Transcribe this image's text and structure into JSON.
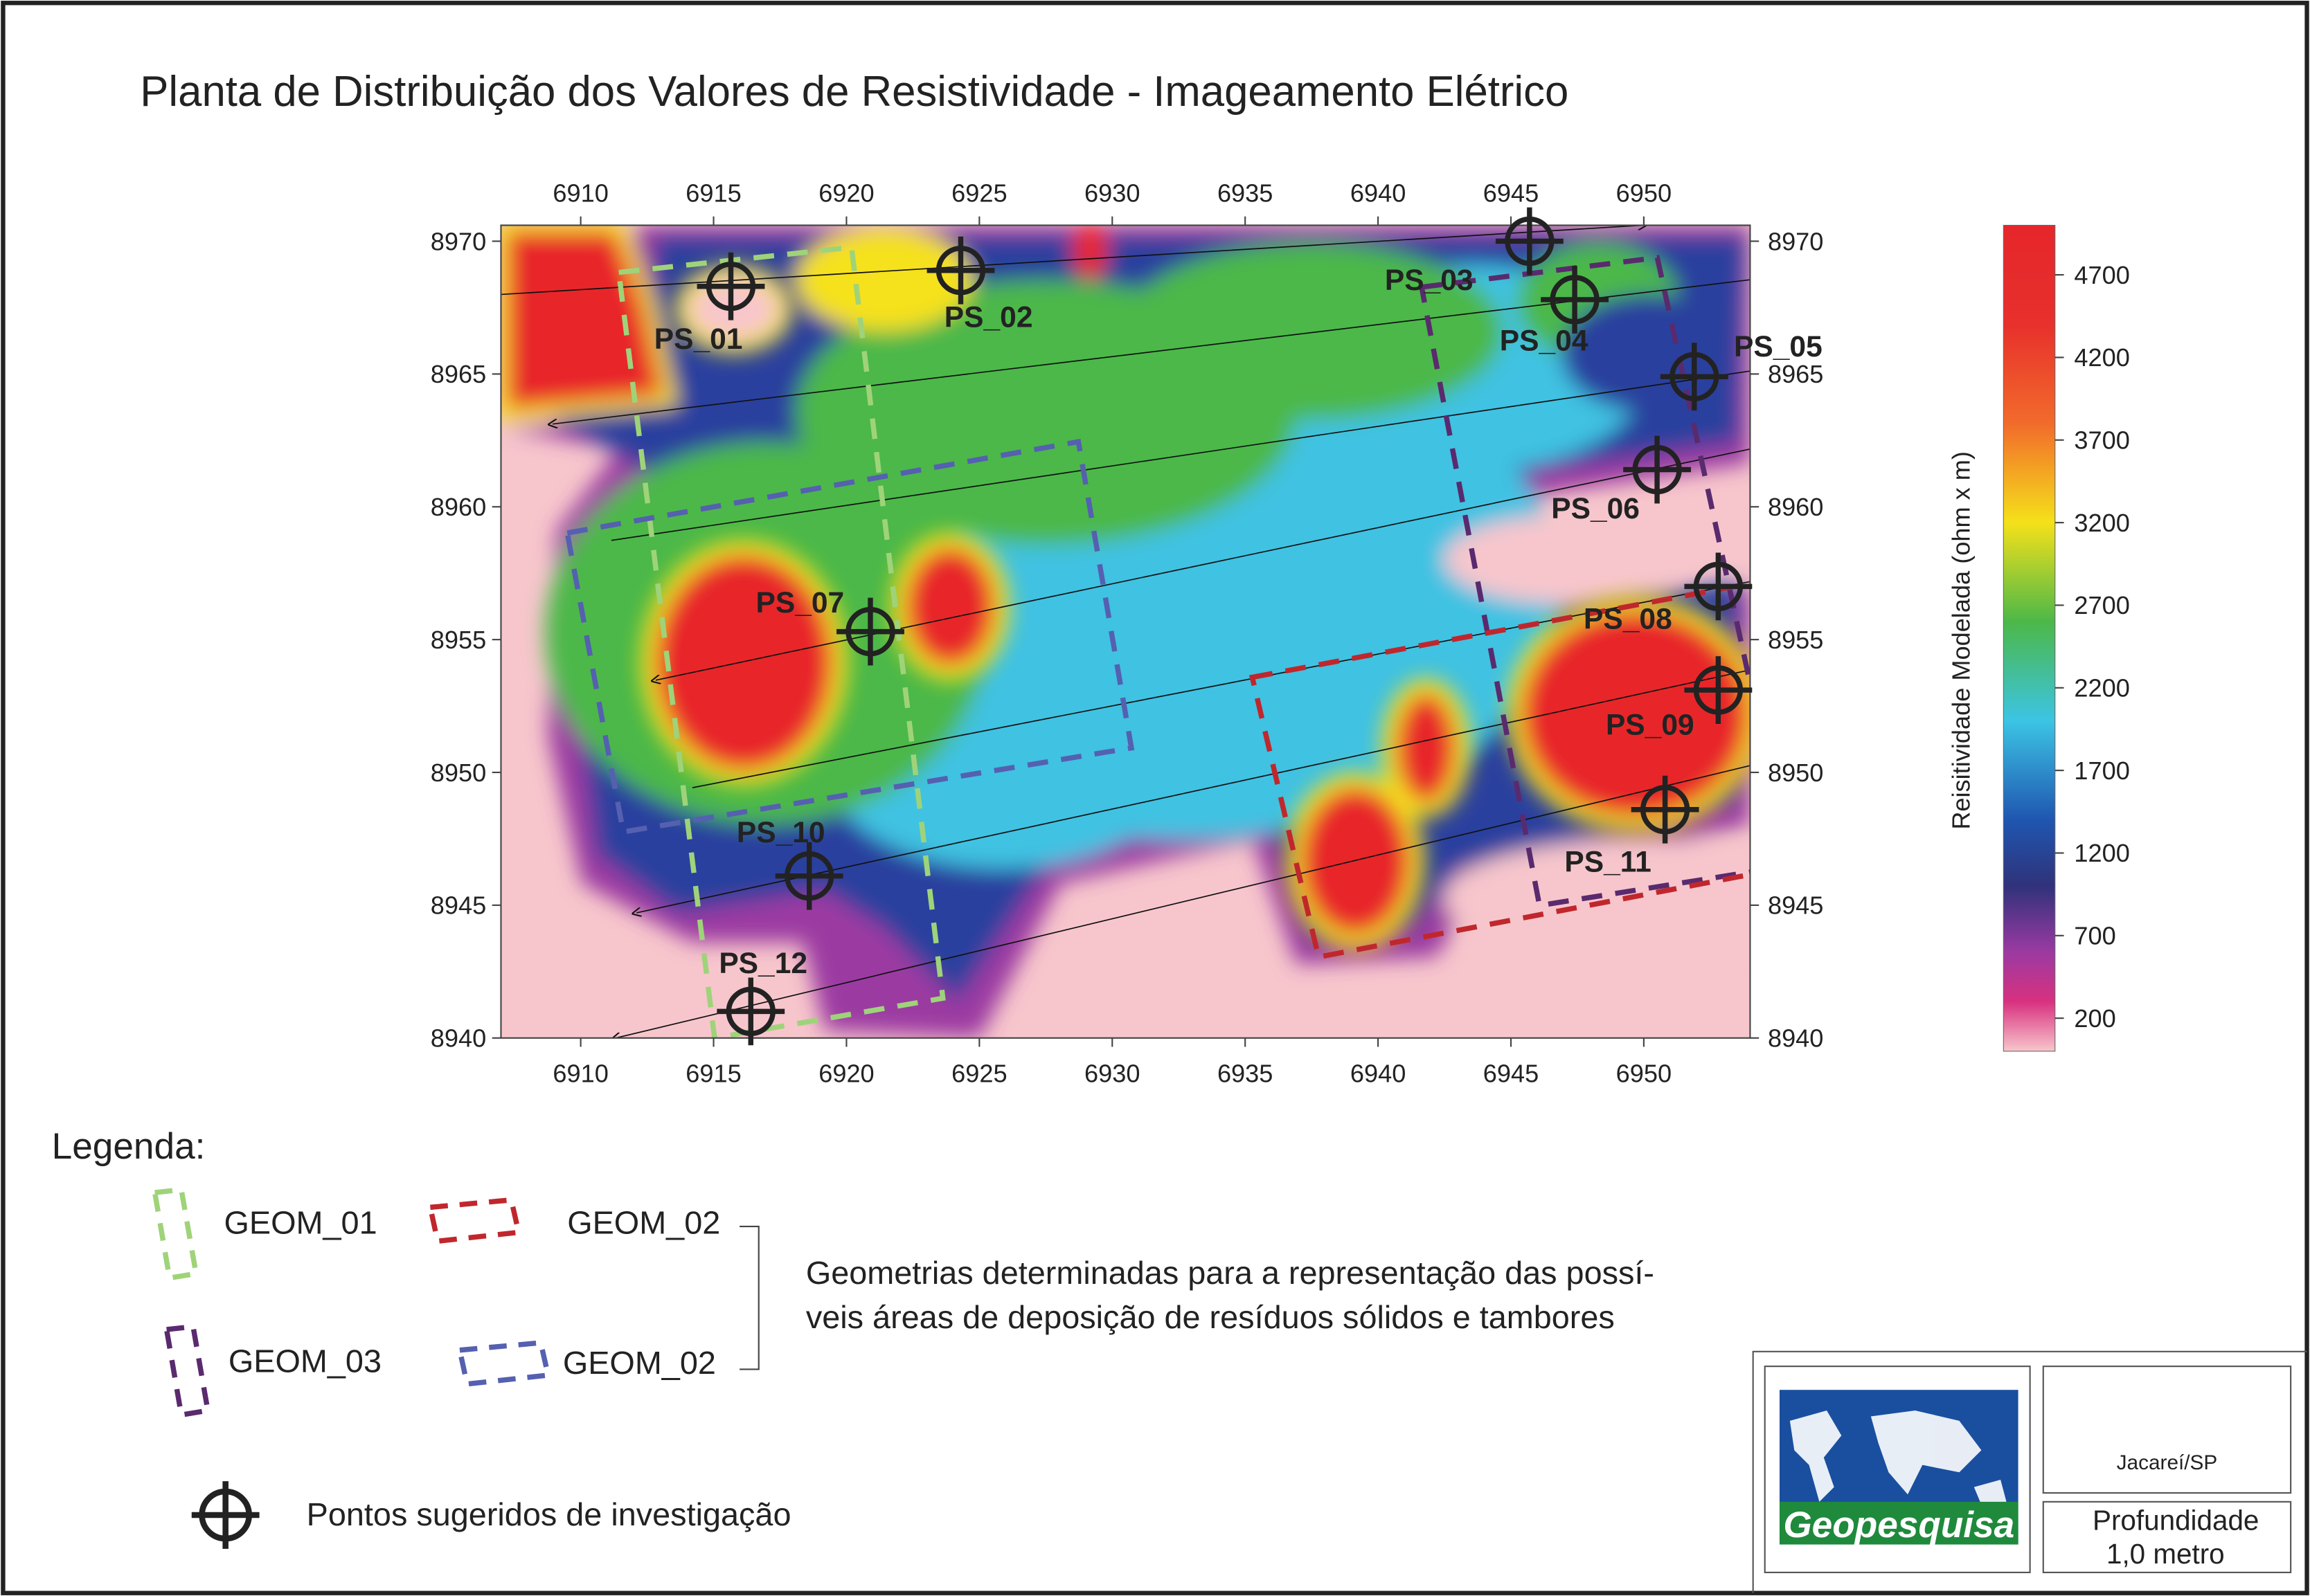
{
  "title": "Planta de Distribuição dos Valores de Resistividade  - Imageamento Elétrico",
  "map": {
    "xlim": [
      6907,
      6954
    ],
    "ylim": [
      8940,
      8970.6
    ],
    "xticks": [
      6910,
      6915,
      6920,
      6925,
      6930,
      6935,
      6940,
      6945,
      6950
    ],
    "yticks": [
      8970,
      8965,
      8960,
      8955,
      8950,
      8945,
      8940
    ],
    "points": [
      {
        "label": "PS_01",
        "x": 6915.65,
        "y": 8968.3
      },
      {
        "label": "PS_02",
        "x": 6924.3,
        "y": 8968.9
      },
      {
        "label": "PS_03",
        "x": 6945.7,
        "y": 8970.0
      },
      {
        "label": "PS_04",
        "x": 6947.4,
        "y": 8967.8
      },
      {
        "label": "PS_05",
        "x": 6951.9,
        "y": 8964.9
      },
      {
        "label": "PS_06",
        "x": 6950.5,
        "y": 8961.4
      },
      {
        "label": "PS_07",
        "x": 6920.9,
        "y": 8955.3
      },
      {
        "label": "PS_08",
        "x": 6952.8,
        "y": 8957.0
      },
      {
        "label": "PS_09",
        "x": 6952.8,
        "y": 8953.1
      },
      {
        "label": "PS_10",
        "x": 6918.6,
        "y": 8946.1
      },
      {
        "label": "PS_11",
        "x": 6950.8,
        "y": 8948.6
      },
      {
        "label": "PS_12",
        "x": 6916.4,
        "y": 8941.0
      }
    ]
  },
  "colorbar": {
    "label": "Reisitividade Modelada (ohm x m)",
    "lim": [
      0,
      5000
    ],
    "ticks": [
      4700,
      4200,
      3700,
      3200,
      2700,
      2200,
      1700,
      1200,
      700,
      200
    ]
  },
  "legend": {
    "title": "Legenda:",
    "items": [
      {
        "label": "GEOM_01",
        "color": "#9fd37a"
      },
      {
        "label": "GEOM_02",
        "color": "#c0272d"
      },
      {
        "label": "GEOM_03",
        "color": "#5a2a6e"
      },
      {
        "label": "GEOM_02",
        "color": "#5560b0"
      }
    ],
    "note": [
      "Geometrias determinadas para a representação das possí-",
      "veis áreas de deposição de resíduos sólidos e tambores"
    ],
    "points_label": "Pontos sugeridos de investigação"
  },
  "footer": {
    "logo": "Geopesquisa",
    "location": "Jacareí/SP",
    "depth_label": "Profundidade",
    "depth_value": "1,0 metro"
  }
}
